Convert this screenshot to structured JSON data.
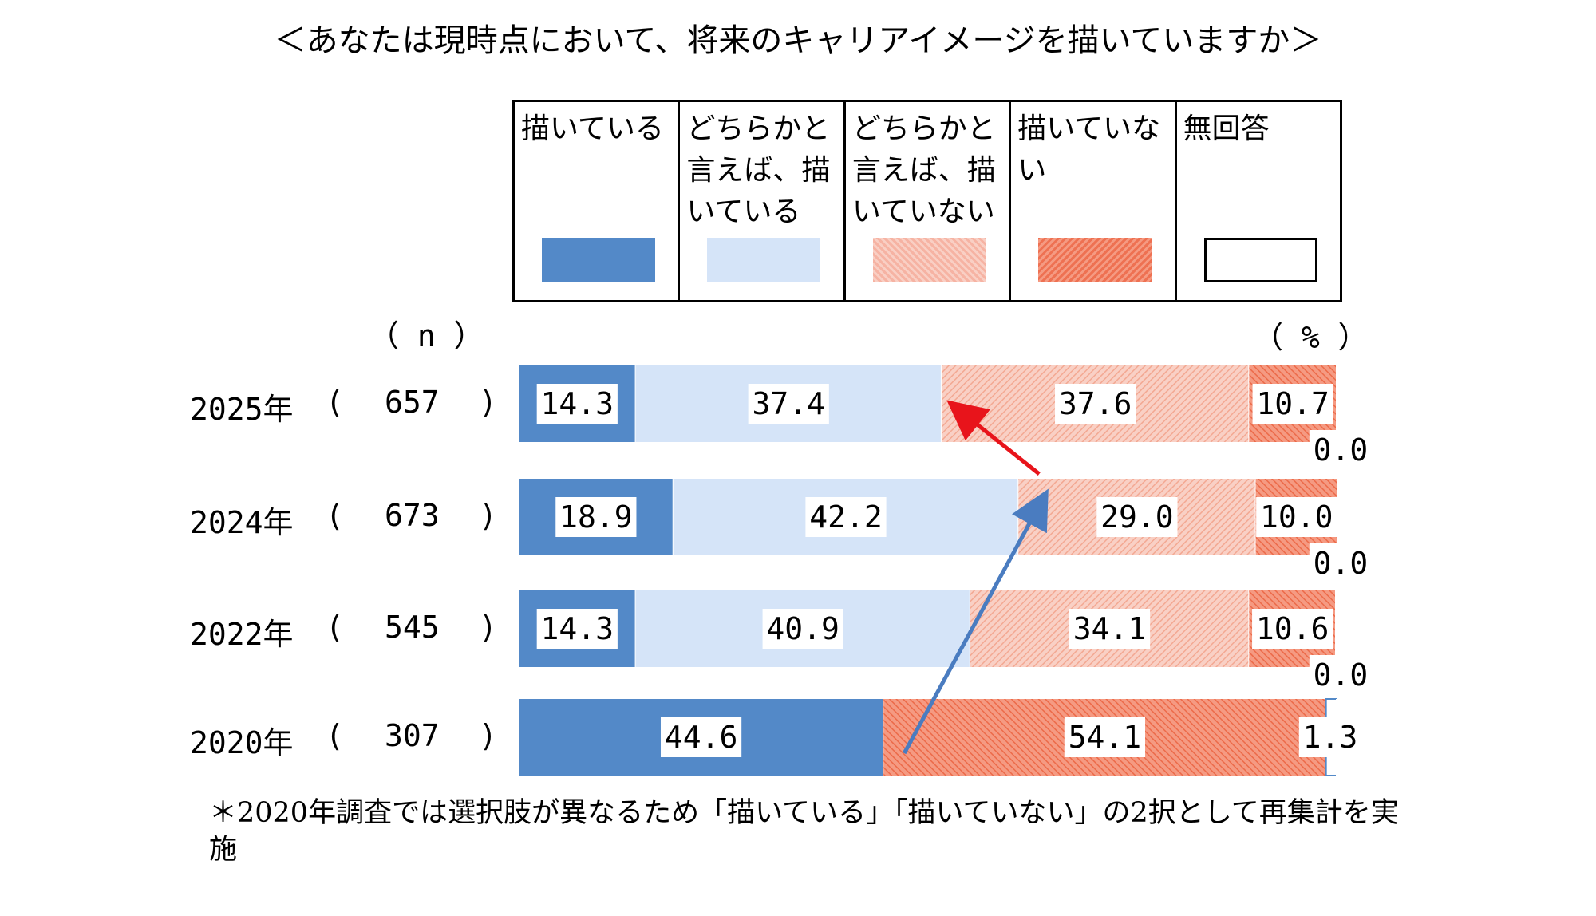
{
  "chart_data": {
    "type": "bar",
    "orientation": "horizontal",
    "stacked": true,
    "title": "＜あなたは現時点において、将来のキャリアイメージを描いていますか＞",
    "n_label": "（ n ）",
    "unit_label": "（ % ）",
    "xlim": [
      0,
      100
    ],
    "categories": [
      "2025年",
      "2024年",
      "2022年",
      "2020年"
    ],
    "n_values": [
      "657",
      "673",
      "545",
      "307"
    ],
    "series": [
      {
        "name": "描いている",
        "color": "#5389c8",
        "values": [
          14.3,
          18.9,
          14.3,
          44.6
        ],
        "labels": [
          "14.3",
          "18.9",
          "14.3",
          "44.6"
        ]
      },
      {
        "name": "どちらかと言えば、描いている",
        "color": "#d5e4f8",
        "values": [
          37.4,
          42.2,
          40.9,
          0
        ],
        "labels": [
          "37.4",
          "42.2",
          "40.9",
          ""
        ]
      },
      {
        "name": "どちらかと言えば、描いていない",
        "color": "#f7bcae",
        "values": [
          37.6,
          29.0,
          34.1,
          0
        ],
        "labels": [
          "37.6",
          "29.0",
          "34.1",
          ""
        ]
      },
      {
        "name": "描いていない",
        "color": "#ef7a5c",
        "values": [
          10.7,
          10.0,
          10.6,
          54.1
        ],
        "labels": [
          "10.7",
          "10.0",
          "10.6",
          "54.1"
        ]
      },
      {
        "name": "無回答",
        "color": "#ffffff",
        "values": [
          0.0,
          0.0,
          0.0,
          1.3
        ],
        "labels": [
          "0.0",
          "0.0",
          "0.0",
          "1.3"
        ]
      }
    ],
    "arrows": [
      {
        "color": "#e8141b"
      },
      {
        "color": "#4a7cc0"
      }
    ],
    "note": "＊2020年調査では選択肢が異なるため「描いている」「描いていない」の2択として再集計を実施"
  }
}
